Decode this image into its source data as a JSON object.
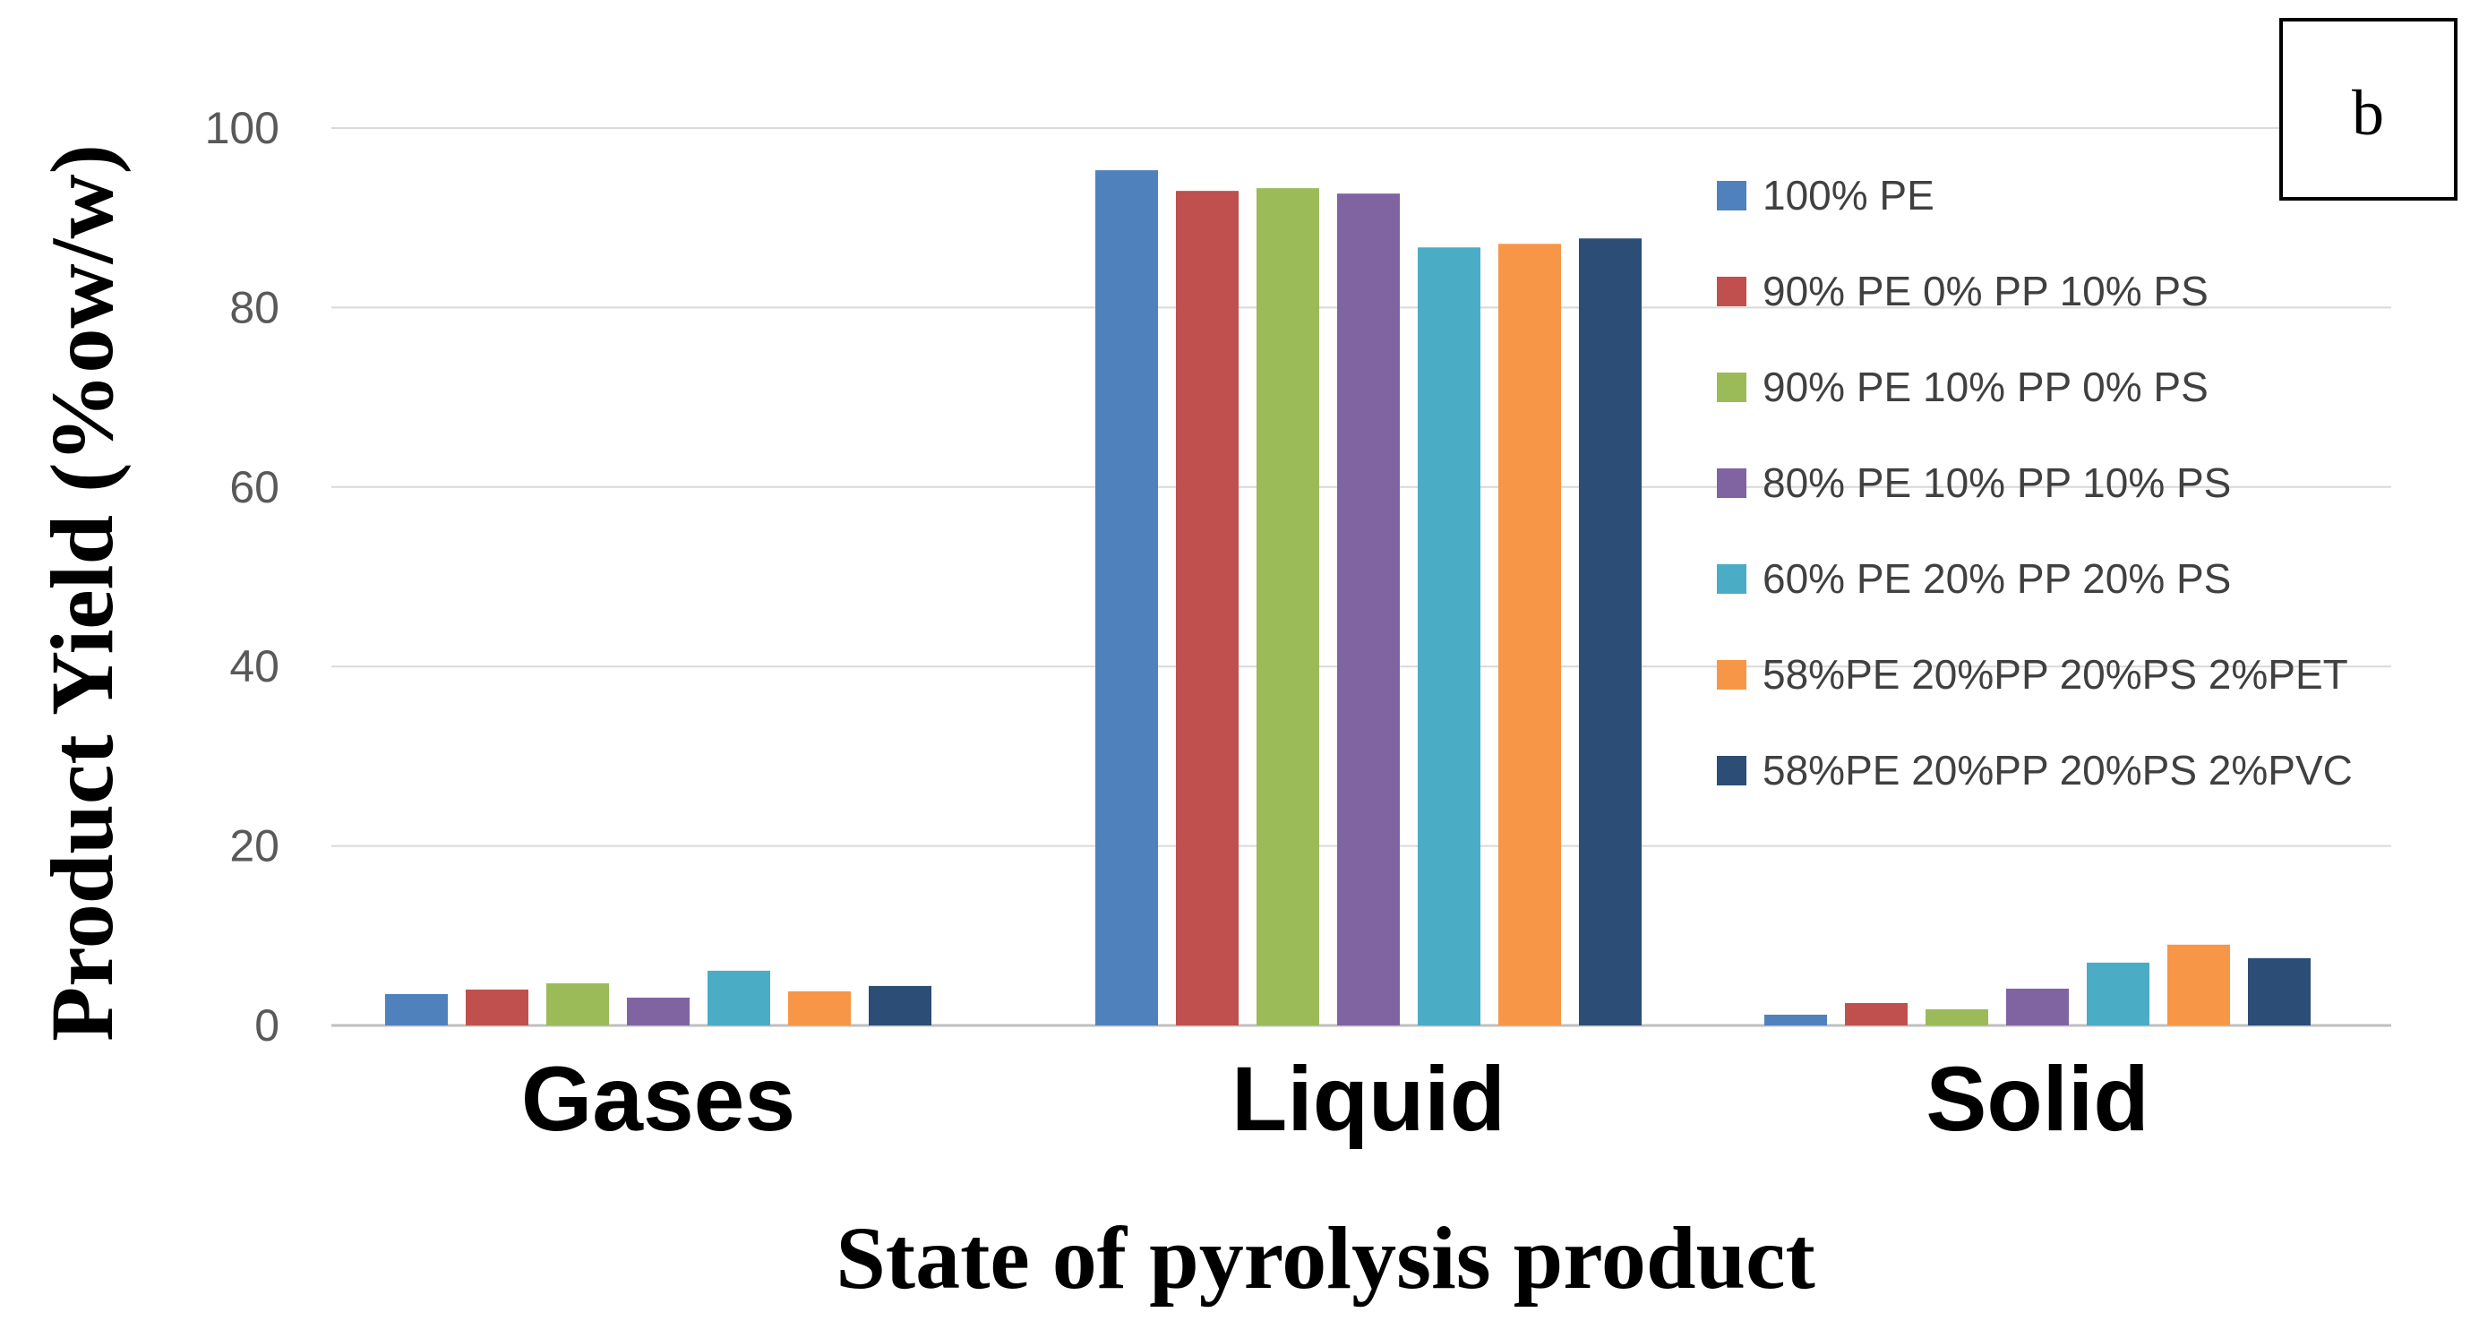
{
  "chart_data": {
    "type": "bar",
    "panel_label": "b",
    "title": "",
    "xlabel": "State of pyrolysis product",
    "ylabel": "Product Yield (%ow/w)",
    "ylim": [
      0,
      100
    ],
    "yticks": [
      0,
      20,
      40,
      60,
      80,
      100
    ],
    "grid": true,
    "legend_position": "right",
    "categories": [
      "Gases",
      "Liquid",
      "Solid"
    ],
    "series": [
      {
        "name": "100% PE",
        "color": "#4F81BD",
        "values": [
          3.5,
          95.3,
          1.2
        ]
      },
      {
        "name": "90% PE 0% PP 10% PS",
        "color": "#C0504D",
        "values": [
          4.0,
          93.0,
          2.5
        ]
      },
      {
        "name": "90% PE 10% PP 0% PS",
        "color": "#9BBB59",
        "values": [
          4.7,
          93.3,
          1.8
        ]
      },
      {
        "name": "80% PE 10% PP 10% PS",
        "color": "#8064A2",
        "values": [
          3.1,
          92.7,
          4.1
        ]
      },
      {
        "name": "60% PE 20% PP 20% PS",
        "color": "#4BACC6",
        "values": [
          6.1,
          86.7,
          7.0
        ]
      },
      {
        "name": "58%PE 20%PP 20%PS 2%PET",
        "color": "#F79646",
        "values": [
          3.8,
          87.1,
          9.0
        ]
      },
      {
        "name": "58%PE 20%PP 20%PS 2%PVC",
        "color": "#2C4D75",
        "values": [
          4.4,
          87.7,
          7.5
        ]
      }
    ]
  }
}
